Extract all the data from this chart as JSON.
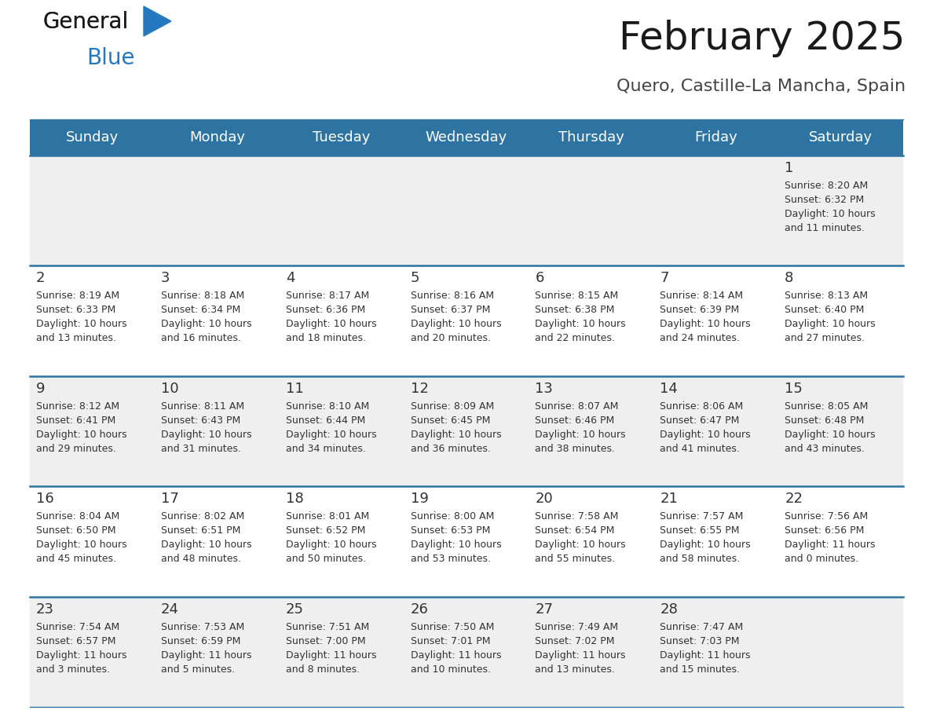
{
  "title": "February 2025",
  "subtitle": "Quero, Castille-La Mancha, Spain",
  "header_bg": "#2E74A3",
  "header_text": "#FFFFFF",
  "cell_bg_odd": "#EFEFEF",
  "cell_bg_even": "#FFFFFF",
  "line_color": "#2E74A3",
  "day_headers": [
    "Sunday",
    "Monday",
    "Tuesday",
    "Wednesday",
    "Thursday",
    "Friday",
    "Saturday"
  ],
  "calendar": [
    [
      {
        "day": null,
        "sunrise": null,
        "sunset": null,
        "daylight": null
      },
      {
        "day": null,
        "sunrise": null,
        "sunset": null,
        "daylight": null
      },
      {
        "day": null,
        "sunrise": null,
        "sunset": null,
        "daylight": null
      },
      {
        "day": null,
        "sunrise": null,
        "sunset": null,
        "daylight": null
      },
      {
        "day": null,
        "sunrise": null,
        "sunset": null,
        "daylight": null
      },
      {
        "day": null,
        "sunrise": null,
        "sunset": null,
        "daylight": null
      },
      {
        "day": 1,
        "sunrise": "8:20 AM",
        "sunset": "6:32 PM",
        "daylight": "10 hours\nand 11 minutes."
      }
    ],
    [
      {
        "day": 2,
        "sunrise": "8:19 AM",
        "sunset": "6:33 PM",
        "daylight": "10 hours\nand 13 minutes."
      },
      {
        "day": 3,
        "sunrise": "8:18 AM",
        "sunset": "6:34 PM",
        "daylight": "10 hours\nand 16 minutes."
      },
      {
        "day": 4,
        "sunrise": "8:17 AM",
        "sunset": "6:36 PM",
        "daylight": "10 hours\nand 18 minutes."
      },
      {
        "day": 5,
        "sunrise": "8:16 AM",
        "sunset": "6:37 PM",
        "daylight": "10 hours\nand 20 minutes."
      },
      {
        "day": 6,
        "sunrise": "8:15 AM",
        "sunset": "6:38 PM",
        "daylight": "10 hours\nand 22 minutes."
      },
      {
        "day": 7,
        "sunrise": "8:14 AM",
        "sunset": "6:39 PM",
        "daylight": "10 hours\nand 24 minutes."
      },
      {
        "day": 8,
        "sunrise": "8:13 AM",
        "sunset": "6:40 PM",
        "daylight": "10 hours\nand 27 minutes."
      }
    ],
    [
      {
        "day": 9,
        "sunrise": "8:12 AM",
        "sunset": "6:41 PM",
        "daylight": "10 hours\nand 29 minutes."
      },
      {
        "day": 10,
        "sunrise": "8:11 AM",
        "sunset": "6:43 PM",
        "daylight": "10 hours\nand 31 minutes."
      },
      {
        "day": 11,
        "sunrise": "8:10 AM",
        "sunset": "6:44 PM",
        "daylight": "10 hours\nand 34 minutes."
      },
      {
        "day": 12,
        "sunrise": "8:09 AM",
        "sunset": "6:45 PM",
        "daylight": "10 hours\nand 36 minutes."
      },
      {
        "day": 13,
        "sunrise": "8:07 AM",
        "sunset": "6:46 PM",
        "daylight": "10 hours\nand 38 minutes."
      },
      {
        "day": 14,
        "sunrise": "8:06 AM",
        "sunset": "6:47 PM",
        "daylight": "10 hours\nand 41 minutes."
      },
      {
        "day": 15,
        "sunrise": "8:05 AM",
        "sunset": "6:48 PM",
        "daylight": "10 hours\nand 43 minutes."
      }
    ],
    [
      {
        "day": 16,
        "sunrise": "8:04 AM",
        "sunset": "6:50 PM",
        "daylight": "10 hours\nand 45 minutes."
      },
      {
        "day": 17,
        "sunrise": "8:02 AM",
        "sunset": "6:51 PM",
        "daylight": "10 hours\nand 48 minutes."
      },
      {
        "day": 18,
        "sunrise": "8:01 AM",
        "sunset": "6:52 PM",
        "daylight": "10 hours\nand 50 minutes."
      },
      {
        "day": 19,
        "sunrise": "8:00 AM",
        "sunset": "6:53 PM",
        "daylight": "10 hours\nand 53 minutes."
      },
      {
        "day": 20,
        "sunrise": "7:58 AM",
        "sunset": "6:54 PM",
        "daylight": "10 hours\nand 55 minutes."
      },
      {
        "day": 21,
        "sunrise": "7:57 AM",
        "sunset": "6:55 PM",
        "daylight": "10 hours\nand 58 minutes."
      },
      {
        "day": 22,
        "sunrise": "7:56 AM",
        "sunset": "6:56 PM",
        "daylight": "11 hours\nand 0 minutes."
      }
    ],
    [
      {
        "day": 23,
        "sunrise": "7:54 AM",
        "sunset": "6:57 PM",
        "daylight": "11 hours\nand 3 minutes."
      },
      {
        "day": 24,
        "sunrise": "7:53 AM",
        "sunset": "6:59 PM",
        "daylight": "11 hours\nand 5 minutes."
      },
      {
        "day": 25,
        "sunrise": "7:51 AM",
        "sunset": "7:00 PM",
        "daylight": "11 hours\nand 8 minutes."
      },
      {
        "day": 26,
        "sunrise": "7:50 AM",
        "sunset": "7:01 PM",
        "daylight": "11 hours\nand 10 minutes."
      },
      {
        "day": 27,
        "sunrise": "7:49 AM",
        "sunset": "7:02 PM",
        "daylight": "11 hours\nand 13 minutes."
      },
      {
        "day": 28,
        "sunrise": "7:47 AM",
        "sunset": "7:03 PM",
        "daylight": "11 hours\nand 15 minutes."
      },
      {
        "day": null,
        "sunrise": null,
        "sunset": null,
        "daylight": null
      }
    ]
  ],
  "logo_color_general": "#1a1a1a",
  "logo_color_blue": "#2478BE",
  "title_fontsize": 36,
  "subtitle_fontsize": 16,
  "header_fontsize": 13,
  "day_num_fontsize": 13,
  "cell_fontsize": 9
}
